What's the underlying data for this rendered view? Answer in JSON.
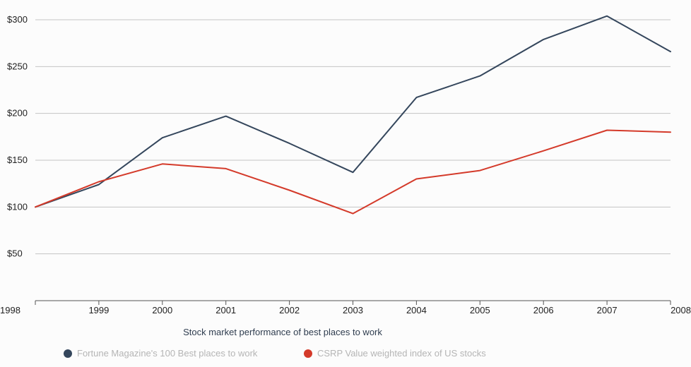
{
  "chart_data": {
    "type": "line",
    "title": "Stock market performance of best places to work",
    "xlabel": "",
    "ylabel": "",
    "x": [
      "1998",
      "1999",
      "2000",
      "2001",
      "2002",
      "2003",
      "2004",
      "2005",
      "2006",
      "2007",
      "2008"
    ],
    "ylim": [
      0,
      300
    ],
    "yticks": [
      50,
      100,
      150,
      200,
      250,
      300
    ],
    "ytick_labels": [
      "$50",
      "$100",
      "$150",
      "$200",
      "$250",
      "$300"
    ],
    "grid": true,
    "legend_position": "bottom",
    "series": [
      {
        "name": "Fortune Magazine's 100 Best places to work",
        "color": "#34465c",
        "values": [
          100,
          124,
          174,
          197,
          168,
          137,
          217,
          240,
          279,
          304,
          266
        ]
      },
      {
        "name": "CSRP Value weighted index of US stocks",
        "color": "#d43a2a",
        "values": [
          100,
          127,
          146,
          141,
          118,
          93,
          130,
          139,
          160,
          182,
          180
        ]
      }
    ]
  }
}
